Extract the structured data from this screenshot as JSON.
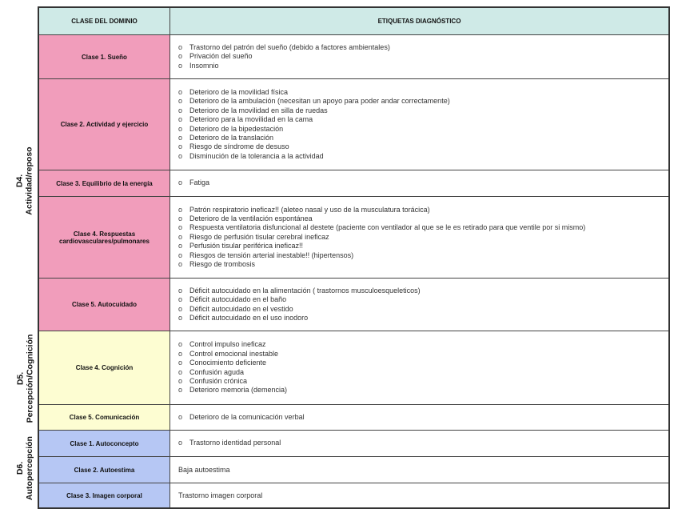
{
  "header": {
    "col1": "CLASE DEL DOMINIO",
    "col2": "ETIQUETAS DIAGNÓSTICO"
  },
  "domains": [
    {
      "code": "D4.",
      "name": "Actividad/reposo"
    },
    {
      "code": "D5.",
      "name": "Percepción/Cognición"
    },
    {
      "code": "D6.",
      "name": "Autopercepción"
    }
  ],
  "rows": [
    {
      "clase": "Clase 1. Sueño",
      "items": [
        "Trastorno del patrón del sueño (debido a factores ambientales)",
        "Privación del sueño",
        "Insomnio"
      ]
    },
    {
      "clase": "Clase 2. Actividad y ejercicio",
      "items": [
        "Deterioro de la movilidad física",
        "Deterioro de la ambulación (necesitan un apoyo para poder andar correctamente)",
        "Deterioro de la movilidad en silla de ruedas",
        "Deterioro para la movilidad en la cama",
        "Deterioro de la bipedestación",
        "Deterioro de la translación",
        "Riesgo de síndrome de desuso",
        "Disminución de la tolerancia a la actividad"
      ]
    },
    {
      "clase": "Clase 3. Equilibrio de la energía",
      "items": [
        "Fatiga"
      ]
    },
    {
      "clase": "Clase 4. Respuestas cardiovasculares/pulmonares",
      "items": [
        "Patrón respiratorio ineficaz!! (aleteo nasal y uso de la musculatura torácica)",
        "Deterioro de la ventilación espontánea",
        "Respuesta ventilatoria disfuncional al destete (paciente con ventilador al que se le es retirado para que ventile por si mismo)",
        "Riesgo de perfusión tisular cerebral ineficaz",
        "Perfusión tisular periférica ineficaz!!",
        "Riesgos de tensión arterial inestable!! (hipertensos)",
        "Riesgo de trombosis"
      ]
    },
    {
      "clase": "Clase 5. Autocuidado",
      "items": [
        "Déficit autocuidado en la alimentación ( trastornos musculoesqueleticos)",
        "Déficit autocuidado en el baño",
        "Déficit autocuidado en el vestido",
        "Déficit autocuidado en el uso inodoro"
      ]
    },
    {
      "clase": "Clase 4. Cognición",
      "items": [
        "Control impulso ineficaz",
        "Control emocional inestable",
        "Conocimiento deficiente",
        "Confusión aguda",
        "Confusión crónica",
        "Deterioro memoria (demencia)"
      ]
    },
    {
      "clase": "Clase 5. Comunicación",
      "items": [
        "Deterioro de la comunicación verbal"
      ]
    },
    {
      "clase": "Clase 1. Autoconcepto",
      "items": [
        "Trastorno identidad personal"
      ]
    },
    {
      "clase": "Clase 2. Autoestima",
      "text": "Baja autoestima"
    },
    {
      "clase": "Clase 3. Imagen corporal",
      "text": "Trastorno imagen corporal"
    }
  ],
  "colors": {
    "header": "#cfeae7",
    "d4": "#f19dbb",
    "d5": "#fdfdd2",
    "d6": "#b6c7f4"
  }
}
